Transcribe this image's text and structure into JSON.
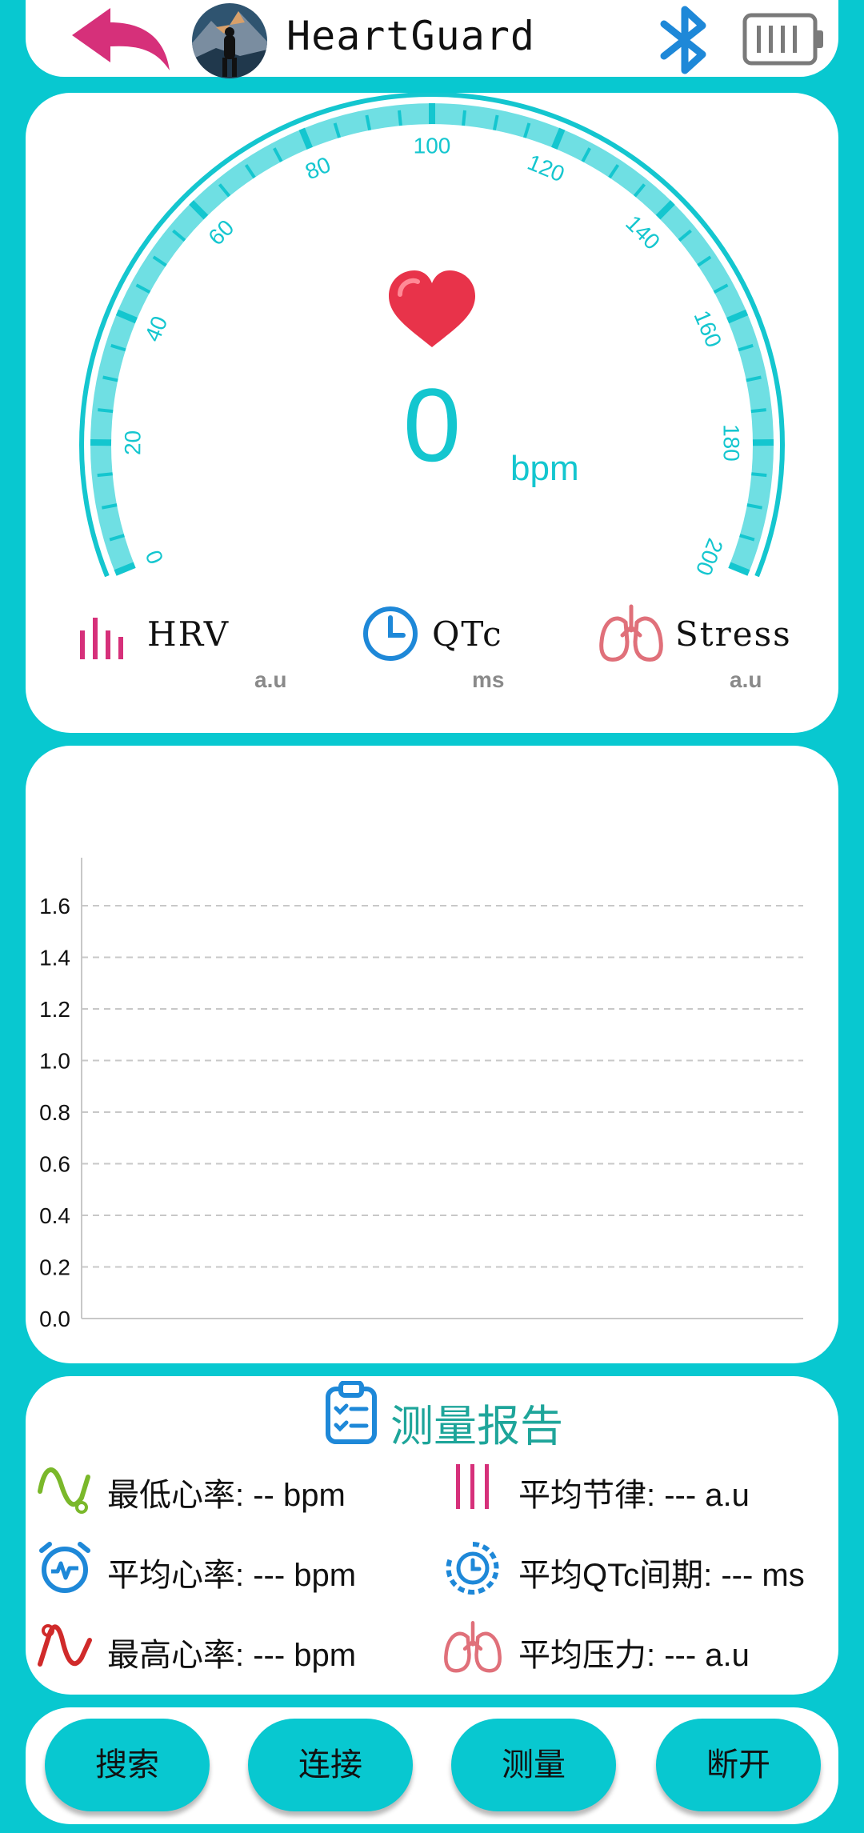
{
  "header": {
    "title": "HeartGuard",
    "icons": {
      "back": "back-arrow-icon",
      "avatar": "avatar",
      "bluetooth": "bluetooth-icon",
      "battery": "battery-icon"
    }
  },
  "gauge": {
    "value": "0",
    "unit": "bpm",
    "min": 0,
    "max": 200,
    "ticks": [
      "0",
      "20",
      "40",
      "60",
      "80",
      "100",
      "120",
      "140",
      "160",
      "180",
      "200"
    ],
    "icon": "heart-icon"
  },
  "metrics": [
    {
      "label": "HRV",
      "unit": "a.u",
      "icon": "bar-chart-icon",
      "color": "#d6307a"
    },
    {
      "label": "QTc",
      "unit": "ms",
      "icon": "clock-icon",
      "color": "#1e88d8"
    },
    {
      "label": "Stress",
      "unit": "a.u",
      "icon": "lungs-icon",
      "color": "#e0707a"
    }
  ],
  "chart_data": {
    "type": "line",
    "title": "",
    "xlabel": "",
    "ylabel": "",
    "ylim": [
      0,
      1.6
    ],
    "yticks": [
      "0.0",
      "0.2",
      "0.4",
      "0.6",
      "0.8",
      "1.0",
      "1.2",
      "1.4",
      "1.6"
    ],
    "grid": true,
    "series": []
  },
  "report": {
    "title": "测量报告",
    "icon": "clipboard-icon",
    "stats": [
      {
        "text": "最低心率: -- bpm",
        "icon": "wave-low-icon"
      },
      {
        "text": "平均节律: --- a.u",
        "icon": "bars-icon"
      },
      {
        "text": "平均心率: --- bpm",
        "icon": "alarm-pulse-icon"
      },
      {
        "text": "平均QTc间期: --- ms",
        "icon": "timer-icon"
      },
      {
        "text": "最高心率: --- bpm",
        "icon": "wave-high-icon"
      },
      {
        "text": "平均压力: --- a.u",
        "icon": "lungs-icon"
      }
    ]
  },
  "buttons": [
    {
      "label": "搜索"
    },
    {
      "label": "连接"
    },
    {
      "label": "测量"
    },
    {
      "label": "断开"
    }
  ],
  "colors": {
    "background": "#08c8d0",
    "accent": "#14c6cf",
    "back_arrow": "#d6307a",
    "bluetooth": "#1e88d8"
  }
}
